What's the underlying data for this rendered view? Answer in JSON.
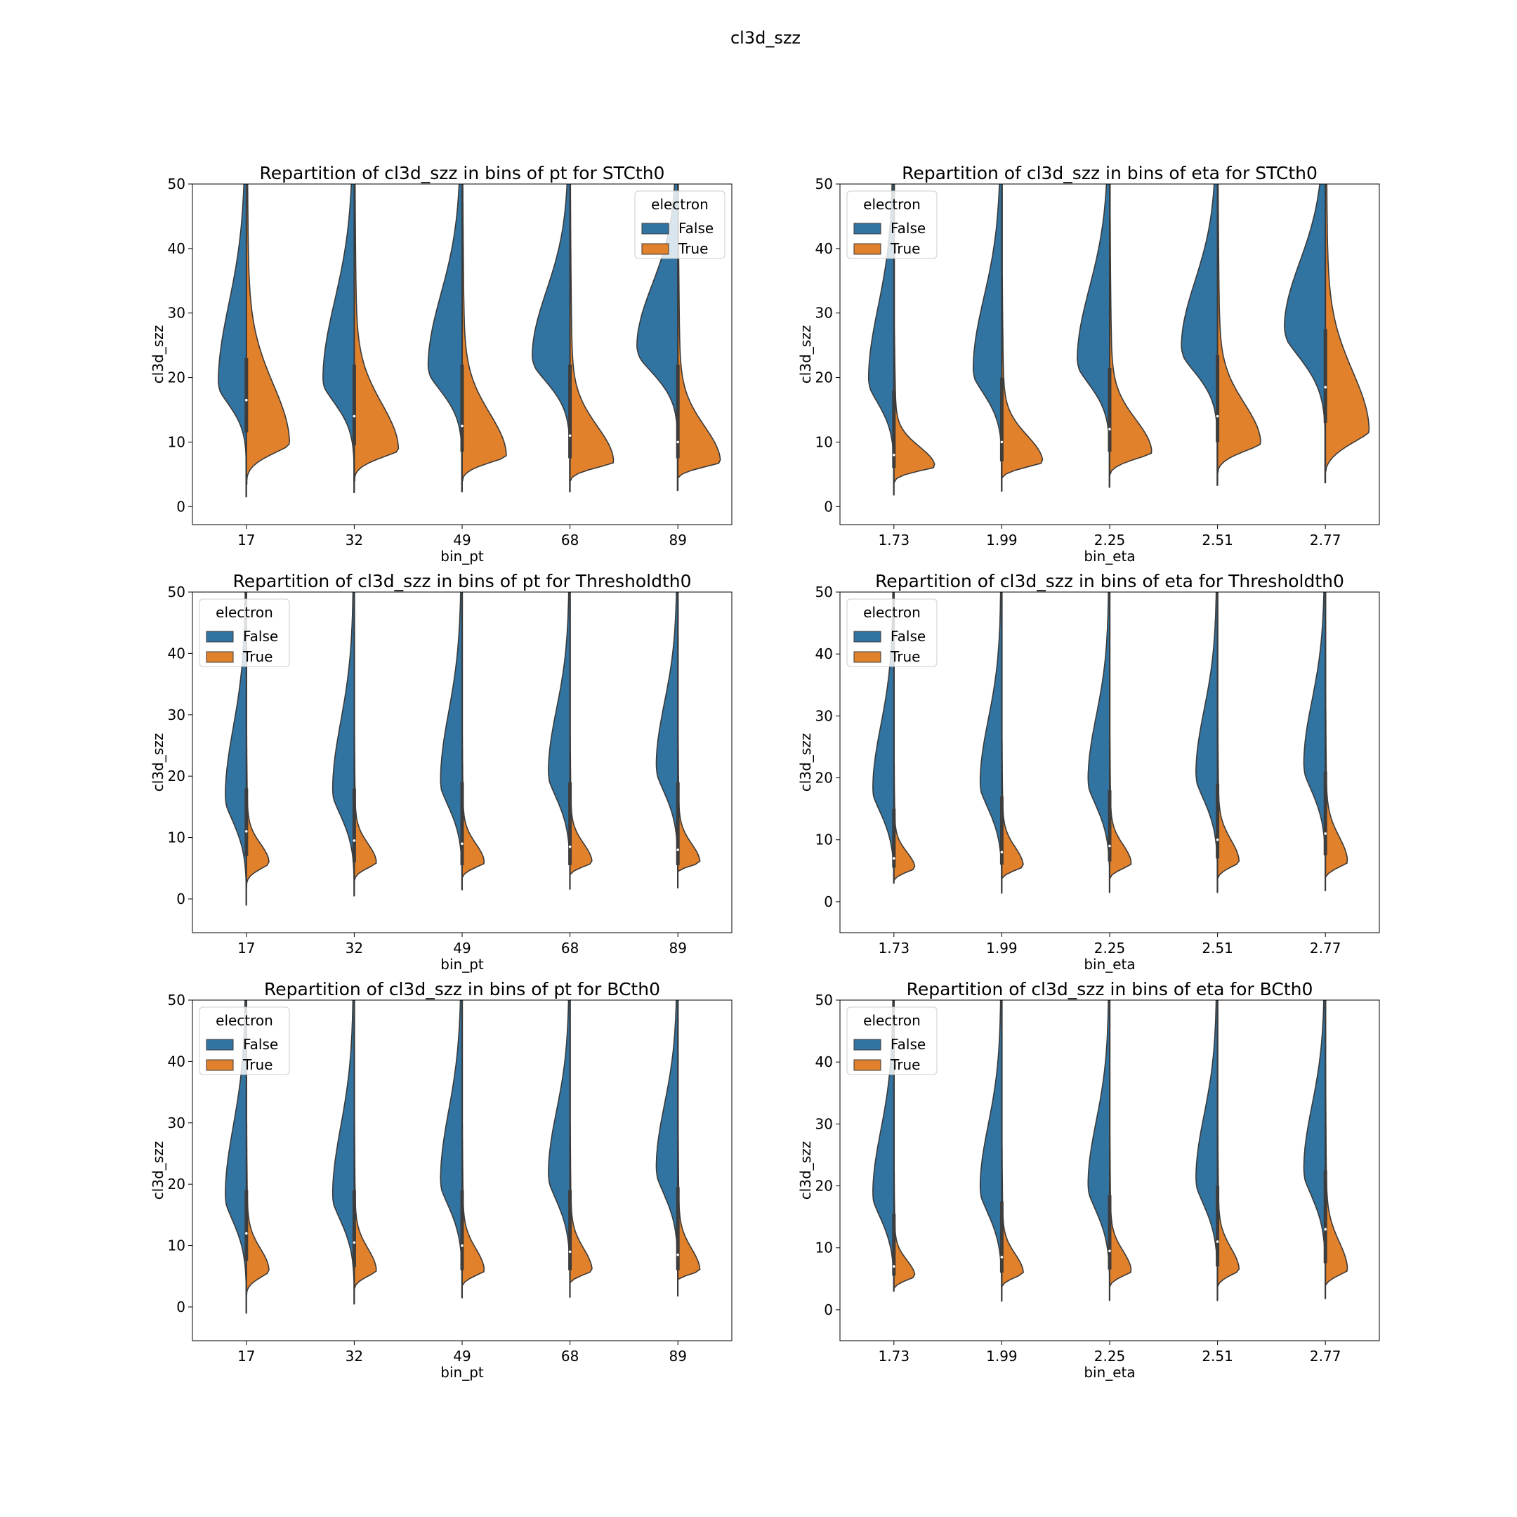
{
  "figure": {
    "suptitle": "cl3d_szz"
  },
  "colors": {
    "false": "#3274a1",
    "true": "#e1812c",
    "edge": "#3a3a3a",
    "box": "#3d3d3d"
  },
  "chart_data": [
    {
      "type": "violin",
      "title": "Repartition of cl3d_szz in bins of pt for STCth0",
      "xlabel": "bin_pt",
      "ylabel": "cl3d_szz",
      "ylim": [
        -2.8,
        50
      ],
      "yticks": [
        "0",
        "10",
        "20",
        "30",
        "40",
        "50"
      ],
      "categories": [
        "17",
        "32",
        "49",
        "68",
        "89"
      ],
      "legend": {
        "title": "electron",
        "entries": [
          "False",
          "True"
        ],
        "position": "top-right"
      },
      "series": [
        {
          "name": "False",
          "shapes": [
            {
              "min": 1.5,
              "peak": 19.5,
              "width": 0.52,
              "upper": 12,
              "lower": 4.5
            },
            {
              "min": 2.2,
              "peak": 20.0,
              "width": 0.58,
              "upper": 12,
              "lower": 5
            },
            {
              "min": 2.3,
              "peak": 22.0,
              "width": 0.63,
              "upper": 11,
              "lower": 5
            },
            {
              "min": 2.3,
              "peak": 23.5,
              "width": 0.7,
              "upper": 10,
              "lower": 5
            },
            {
              "min": 2.5,
              "peak": 25.0,
              "width": 0.76,
              "upper": 9.5,
              "lower": 5
            }
          ]
        },
        {
          "name": "True",
          "shapes": [
            {
              "min": 3.5,
              "peak": 10.0,
              "width": 0.8,
              "upper": 9,
              "lower": 2.5
            },
            {
              "min": 4.0,
              "peak": 9.0,
              "width": 0.82,
              "upper": 7,
              "lower": 2
            },
            {
              "min": 4.0,
              "peak": 8.0,
              "width": 0.82,
              "upper": 6.5,
              "lower": 1.8
            },
            {
              "min": 4.0,
              "peak": 7.0,
              "width": 0.81,
              "upper": 5.5,
              "lower": 1.5
            },
            {
              "min": 4.5,
              "peak": 7.0,
              "width": 0.79,
              "upper": 5.5,
              "lower": 1.5
            }
          ]
        }
      ],
      "quartiles": [
        [
          11.5,
          16.5,
          23.0
        ],
        [
          9.5,
          14.0,
          22.0
        ],
        [
          8.5,
          12.5,
          22.0
        ],
        [
          7.5,
          11.0,
          22.0
        ],
        [
          7.5,
          10.0,
          22.0
        ]
      ]
    },
    {
      "type": "violin",
      "title": "Repartition of cl3d_szz in bins of eta for STCth0",
      "xlabel": "bin_eta",
      "ylabel": "cl3d_szz",
      "ylim": [
        -2.8,
        50
      ],
      "yticks": [
        "0",
        "10",
        "20",
        "30",
        "40",
        "50"
      ],
      "categories": [
        "1.73",
        "1.99",
        "2.25",
        "2.51",
        "2.77"
      ],
      "legend": {
        "title": "electron",
        "entries": [
          "False",
          "True"
        ],
        "position": "top-left"
      },
      "series": [
        {
          "name": "False",
          "shapes": [
            {
              "min": 1.8,
              "peak": 20.0,
              "width": 0.47,
              "upper": 11,
              "lower": 5
            },
            {
              "min": 2.4,
              "peak": 21.5,
              "width": 0.53,
              "upper": 11,
              "lower": 5
            },
            {
              "min": 3.0,
              "peak": 23.0,
              "width": 0.6,
              "upper": 11,
              "lower": 5
            },
            {
              "min": 3.3,
              "peak": 25.0,
              "width": 0.67,
              "upper": 10,
              "lower": 5
            },
            {
              "min": 3.7,
              "peak": 28.0,
              "width": 0.76,
              "upper": 10,
              "lower": 6
            }
          ]
        },
        {
          "name": "True",
          "shapes": [
            {
              "min": 3.8,
              "peak": 6.3,
              "width": 0.76,
              "upper": 3,
              "lower": 1.2
            },
            {
              "min": 4.5,
              "peak": 7.0,
              "width": 0.76,
              "upper": 4,
              "lower": 1.5
            },
            {
              "min": 5.0,
              "peak": 8.5,
              "width": 0.78,
              "upper": 5,
              "lower": 1.8
            },
            {
              "min": 5.3,
              "peak": 10.0,
              "width": 0.8,
              "upper": 6,
              "lower": 2.2
            },
            {
              "min": 5.5,
              "peak": 12.0,
              "width": 0.81,
              "upper": 9,
              "lower": 3.5
            }
          ]
        }
      ],
      "quartiles": [
        [
          6.0,
          8.0,
          18.0
        ],
        [
          7.0,
          10.0,
          20.0
        ],
        [
          8.5,
          12.0,
          21.5
        ],
        [
          10.0,
          14.0,
          23.5
        ],
        [
          13.0,
          18.5,
          27.5
        ]
      ]
    },
    {
      "type": "violin",
      "title": "Repartition of cl3d_szz in bins of pt for Thresholdth0",
      "xlabel": "bin_pt",
      "ylabel": "cl3d_szz",
      "ylim": [
        -5.5,
        50
      ],
      "yticks": [
        "0",
        "10",
        "20",
        "30",
        "40",
        "50"
      ],
      "categories": [
        "17",
        "32",
        "49",
        "68",
        "89"
      ],
      "legend": {
        "title": "electron",
        "entries": [
          "False",
          "True"
        ],
        "position": "top-left"
      },
      "series": [
        {
          "name": "False",
          "shapes": [
            {
              "min": -1.0,
              "peak": 17.0,
              "width": 0.39,
              "upper": 11,
              "lower": 6
            },
            {
              "min": 0.5,
              "peak": 18.0,
              "width": 0.4,
              "upper": 11,
              "lower": 6
            },
            {
              "min": 1.5,
              "peak": 19.5,
              "width": 0.4,
              "upper": 11,
              "lower": 6
            },
            {
              "min": 1.6,
              "peak": 21.0,
              "width": 0.4,
              "upper": 10,
              "lower": 6
            },
            {
              "min": 1.8,
              "peak": 22.0,
              "width": 0.4,
              "upper": 10,
              "lower": 6
            }
          ]
        },
        {
          "name": "True",
          "shapes": [
            {
              "min": 2.0,
              "peak": 6.0,
              "width": 0.42,
              "upper": 3,
              "lower": 1.6
            },
            {
              "min": 3.0,
              "peak": 6.0,
              "width": 0.41,
              "upper": 3,
              "lower": 1.5
            },
            {
              "min": 3.5,
              "peak": 6.0,
              "width": 0.41,
              "upper": 3,
              "lower": 1.5
            },
            {
              "min": 4.0,
              "peak": 6.0,
              "width": 0.41,
              "upper": 3,
              "lower": 1.4
            },
            {
              "min": 4.5,
              "peak": 6.0,
              "width": 0.41,
              "upper": 3,
              "lower": 1.3
            }
          ]
        }
      ],
      "quartiles": [
        [
          7.0,
          11.0,
          18.0
        ],
        [
          6.0,
          9.5,
          18.0
        ],
        [
          5.5,
          9.0,
          19.0
        ],
        [
          5.5,
          8.5,
          19.0
        ],
        [
          5.5,
          8.0,
          19.0
        ]
      ]
    },
    {
      "type": "violin",
      "title": "Repartition of cl3d_szz in bins of eta for Thresholdth0",
      "xlabel": "bin_eta",
      "ylabel": "cl3d_szz",
      "ylim": [
        -5.0,
        50
      ],
      "yticks": [
        "0",
        "10",
        "20",
        "30",
        "40",
        "50"
      ],
      "categories": [
        "1.73",
        "1.99",
        "2.25",
        "2.51",
        "2.77"
      ],
      "legend": {
        "title": "electron",
        "entries": [
          "False",
          "True"
        ],
        "position": "top-left"
      },
      "series": [
        {
          "name": "False",
          "shapes": [
            {
              "min": 3.0,
              "peak": 18.5,
              "width": 0.39,
              "upper": 10,
              "lower": 6
            },
            {
              "min": 1.4,
              "peak": 19.5,
              "width": 0.4,
              "upper": 10,
              "lower": 6
            },
            {
              "min": 1.5,
              "peak": 20.0,
              "width": 0.4,
              "upper": 10,
              "lower": 6
            },
            {
              "min": 1.5,
              "peak": 21.0,
              "width": 0.4,
              "upper": 10,
              "lower": 6
            },
            {
              "min": 1.8,
              "peak": 22.5,
              "width": 0.4,
              "upper": 10,
              "lower": 6
            }
          ]
        },
        {
          "name": "True",
          "shapes": [
            {
              "min": 3.5,
              "peak": 5.5,
              "width": 0.39,
              "upper": 2.5,
              "lower": 1.3
            },
            {
              "min": 3.8,
              "peak": 5.8,
              "width": 0.4,
              "upper": 3,
              "lower": 1.4
            },
            {
              "min": 3.8,
              "peak": 6.2,
              "width": 0.4,
              "upper": 3,
              "lower": 1.5
            },
            {
              "min": 3.8,
              "peak": 6.5,
              "width": 0.4,
              "upper": 3.5,
              "lower": 1.6
            },
            {
              "min": 4.0,
              "peak": 6.5,
              "width": 0.41,
              "upper": 4,
              "lower": 1.8
            }
          ]
        }
      ],
      "quartiles": [
        [
          5.5,
          7.0,
          15.0
        ],
        [
          6.0,
          8.0,
          17.0
        ],
        [
          6.5,
          9.0,
          18.0
        ],
        [
          7.0,
          10.0,
          19.0
        ],
        [
          7.5,
          11.0,
          21.0
        ]
      ]
    },
    {
      "type": "violin",
      "title": "Repartition of cl3d_szz in bins of pt for BCth0",
      "xlabel": "bin_pt",
      "ylabel": "cl3d_szz",
      "ylim": [
        -5.5,
        50
      ],
      "yticks": [
        "0",
        "10",
        "20",
        "30",
        "40",
        "50"
      ],
      "categories": [
        "17",
        "32",
        "49",
        "68",
        "89"
      ],
      "legend": {
        "title": "electron",
        "entries": [
          "False",
          "True"
        ],
        "position": "top-left"
      },
      "series": [
        {
          "name": "False",
          "shapes": [
            {
              "min": -1.0,
              "peak": 18.5,
              "width": 0.39,
              "upper": 11,
              "lower": 6
            },
            {
              "min": 0.5,
              "peak": 18.5,
              "width": 0.4,
              "upper": 11,
              "lower": 6
            },
            {
              "min": 1.5,
              "peak": 21.0,
              "width": 0.4,
              "upper": 11,
              "lower": 6
            },
            {
              "min": 1.6,
              "peak": 22.0,
              "width": 0.4,
              "upper": 10,
              "lower": 6
            },
            {
              "min": 1.8,
              "peak": 23.0,
              "width": 0.4,
              "upper": 10,
              "lower": 6
            }
          ]
        },
        {
          "name": "True",
          "shapes": [
            {
              "min": 2.0,
              "peak": 6.0,
              "width": 0.42,
              "upper": 3.5,
              "lower": 1.8
            },
            {
              "min": 3.0,
              "peak": 6.0,
              "width": 0.41,
              "upper": 3.5,
              "lower": 1.6
            },
            {
              "min": 3.5,
              "peak": 6.0,
              "width": 0.41,
              "upper": 3.5,
              "lower": 1.6
            },
            {
              "min": 4.0,
              "peak": 6.0,
              "width": 0.41,
              "upper": 3.5,
              "lower": 1.5
            },
            {
              "min": 4.5,
              "peak": 6.0,
              "width": 0.41,
              "upper": 3.5,
              "lower": 1.5
            }
          ]
        }
      ],
      "quartiles": [
        [
          7.5,
          12.0,
          19.0
        ],
        [
          6.5,
          10.5,
          19.0
        ],
        [
          6.0,
          10.0,
          19.0
        ],
        [
          6.0,
          9.0,
          19.0
        ],
        [
          6.0,
          8.5,
          19.5
        ]
      ]
    },
    {
      "type": "violin",
      "title": "Repartition of cl3d_szz in bins of eta for BCth0",
      "xlabel": "bin_eta",
      "ylabel": "cl3d_szz",
      "ylim": [
        -5.0,
        50
      ],
      "yticks": [
        "0",
        "10",
        "20",
        "30",
        "40",
        "50"
      ],
      "categories": [
        "1.73",
        "1.99",
        "2.25",
        "2.51",
        "2.77"
      ],
      "legend": {
        "title": "electron",
        "entries": [
          "False",
          "True"
        ],
        "position": "top-left"
      },
      "series": [
        {
          "name": "False",
          "shapes": [
            {
              "min": 3.0,
              "peak": 19.0,
              "width": 0.39,
              "upper": 10,
              "lower": 6
            },
            {
              "min": 1.4,
              "peak": 20.0,
              "width": 0.4,
              "upper": 10,
              "lower": 6
            },
            {
              "min": 1.5,
              "peak": 20.5,
              "width": 0.4,
              "upper": 10,
              "lower": 6
            },
            {
              "min": 1.5,
              "peak": 21.5,
              "width": 0.4,
              "upper": 10,
              "lower": 6
            },
            {
              "min": 1.8,
              "peak": 23.0,
              "width": 0.4,
              "upper": 10,
              "lower": 6
            }
          ]
        },
        {
          "name": "True",
          "shapes": [
            {
              "min": 3.5,
              "peak": 5.5,
              "width": 0.39,
              "upper": 2.5,
              "lower": 1.3
            },
            {
              "min": 3.8,
              "peak": 6.0,
              "width": 0.4,
              "upper": 3,
              "lower": 1.4
            },
            {
              "min": 3.8,
              "peak": 6.3,
              "width": 0.4,
              "upper": 3.2,
              "lower": 1.5
            },
            {
              "min": 3.8,
              "peak": 6.5,
              "width": 0.4,
              "upper": 3.5,
              "lower": 1.6
            },
            {
              "min": 4.0,
              "peak": 6.5,
              "width": 0.41,
              "upper": 4.5,
              "lower": 1.8
            }
          ]
        }
      ],
      "quartiles": [
        [
          5.5,
          7.0,
          15.5
        ],
        [
          6.0,
          8.5,
          17.5
        ],
        [
          6.5,
          9.5,
          18.5
        ],
        [
          7.0,
          11.0,
          20.0
        ],
        [
          7.5,
          13.0,
          22.5
        ]
      ]
    }
  ]
}
